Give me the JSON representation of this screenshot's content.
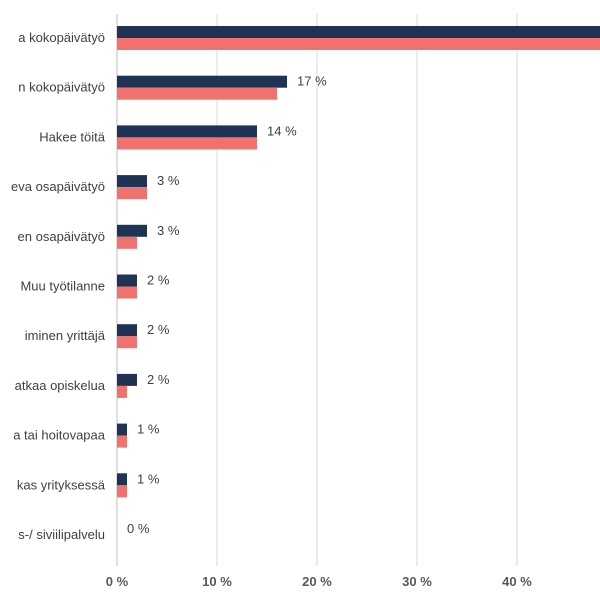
{
  "chart_data": {
    "type": "bar",
    "orientation": "horizontal",
    "categories": [
      "a kokopäivätyö",
      "n kokopäivätyö",
      "Hakee töitä",
      "eva osapäivätyö",
      "en osapäivätyö",
      "Muu työtilanne",
      "iminen yrittäjä",
      "atkaa opiskelua",
      "a tai hoitovapaa",
      "kas yrityksessä",
      "s-/ siviilipalvelu"
    ],
    "series": [
      {
        "color": "#1f3354",
        "values": [
          49,
          17,
          14,
          3,
          3,
          2,
          2,
          2,
          1,
          1,
          0
        ]
      },
      {
        "color": "#f0716d",
        "values": [
          49,
          16,
          14,
          3,
          2,
          2,
          2,
          1,
          1,
          1,
          0
        ]
      }
    ],
    "data_labels": [
      "",
      "17 %",
      "14 %",
      "3 %",
      "3 %",
      "2 %",
      "2 %",
      "2 %",
      "1 %",
      "1 %",
      "0 %"
    ],
    "x_ticks": [
      "0 %",
      "10 %",
      "20 %",
      "30 %",
      "40 %"
    ],
    "xlim": [
      0,
      48.5
    ],
    "grid": true
  }
}
